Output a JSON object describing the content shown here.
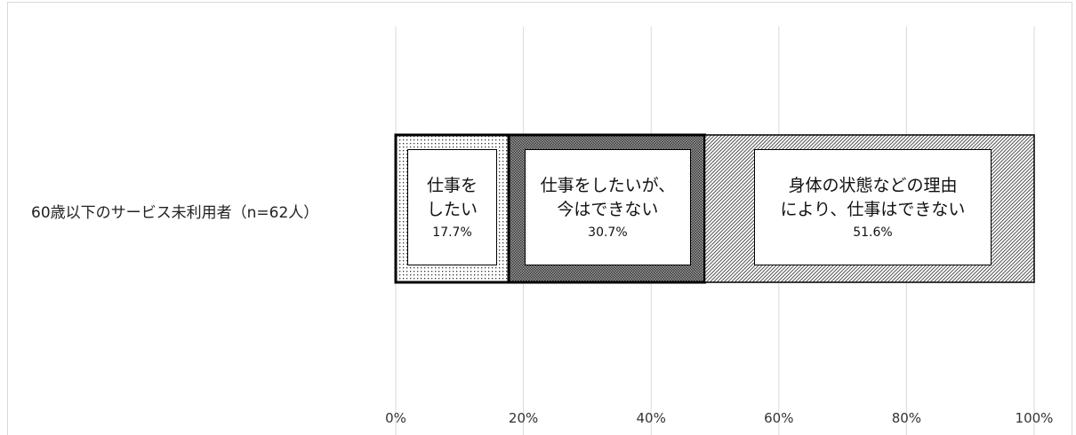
{
  "chart_data": {
    "type": "bar",
    "orientation": "horizontal",
    "stacked": true,
    "categories": [
      "60歳以下のサービス未利用者（n=62人）"
    ],
    "series": [
      {
        "name": "仕事を\nしたい",
        "values": [
          17.7
        ],
        "value_label": "17.7%",
        "pattern": "dots"
      },
      {
        "name": "仕事をしたいが、\n今はできない",
        "values": [
          30.7
        ],
        "value_label": "30.7%",
        "pattern": "dense-crosshatch"
      },
      {
        "name": "身体の状態などの理由\nにより、仕事はできない",
        "values": [
          51.6
        ],
        "value_label": "51.6%",
        "pattern": "diagonal-hatch"
      }
    ],
    "xlim": [
      0,
      100
    ],
    "x_ticks": [
      "0%",
      "20%",
      "40%",
      "60%",
      "80%",
      "100%"
    ],
    "grid": true,
    "legend": "none",
    "title": "",
    "xlabel": "",
    "ylabel": ""
  }
}
